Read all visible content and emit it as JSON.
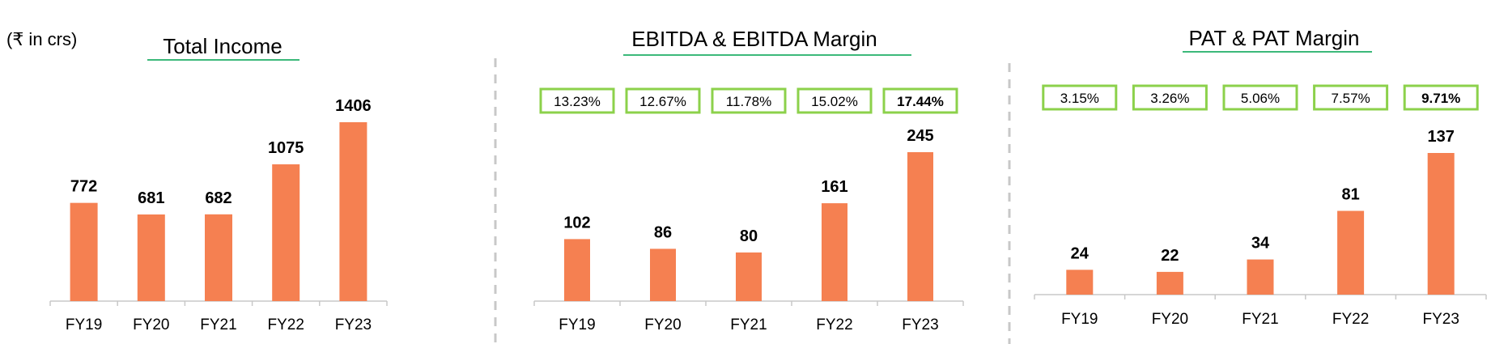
{
  "unit_note": "(₹ in crs)",
  "colors": {
    "bar": "#F58051",
    "title_underline": "#3CB97A",
    "margin_box": "#8CD14B",
    "axis": "#C8C8C8",
    "divider": "#C8C8C8"
  },
  "chart_data": [
    {
      "type": "bar",
      "title": "Total Income",
      "categories": [
        "FY19",
        "FY20",
        "FY21",
        "FY22",
        "FY23"
      ],
      "values": [
        772,
        681,
        682,
        1075,
        1406
      ],
      "value_labels": [
        "772",
        "681",
        "682",
        "1075",
        "1406"
      ]
    },
    {
      "type": "bar",
      "title": "EBITDA & EBITDA Margin",
      "categories": [
        "FY19",
        "FY20",
        "FY21",
        "FY22",
        "FY23"
      ],
      "values": [
        102,
        86,
        80,
        161,
        245
      ],
      "value_labels": [
        "102",
        "86",
        "80",
        "161",
        "245"
      ],
      "margins": [
        "13.23%",
        "12.67%",
        "11.78%",
        "15.02%",
        "17.44%"
      ],
      "highlight_last": true
    },
    {
      "type": "bar",
      "title": "PAT & PAT Margin",
      "categories": [
        "FY19",
        "FY20",
        "FY21",
        "FY22",
        "FY23"
      ],
      "values": [
        24,
        22,
        34,
        81,
        137
      ],
      "value_labels": [
        "24",
        "22",
        "34",
        "81",
        "137"
      ],
      "margins": [
        "3.15%",
        "3.26%",
        "5.06%",
        "7.57%",
        "9.71%"
      ],
      "highlight_last": true
    }
  ]
}
